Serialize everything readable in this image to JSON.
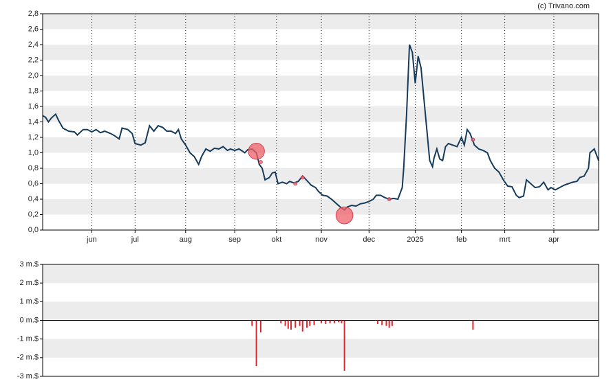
{
  "chart_data": [
    {
      "type": "line",
      "annotation": "(c) Trivano.com",
      "xlim": [
        0,
        385
      ],
      "ylim": [
        0,
        2.8
      ],
      "grid": true,
      "xticks": [
        {
          "value": 34,
          "label": "jun"
        },
        {
          "value": 64,
          "label": "jul"
        },
        {
          "value": 99,
          "label": "aug"
        },
        {
          "value": 133,
          "label": "sep"
        },
        {
          "value": 162,
          "label": "okt"
        },
        {
          "value": 193,
          "label": "nov"
        },
        {
          "value": 226,
          "label": "dec"
        },
        {
          "value": 258,
          "label": "2025"
        },
        {
          "value": 290,
          "label": "feb"
        },
        {
          "value": 320,
          "label": "mrt"
        },
        {
          "value": 354,
          "label": "apr"
        }
      ],
      "yticks": [
        {
          "value": 0,
          "label": "0,0"
        },
        {
          "value": 0.2,
          "label": "0,2"
        },
        {
          "value": 0.4,
          "label": "0,4"
        },
        {
          "value": 0.6,
          "label": "0,6"
        },
        {
          "value": 0.8,
          "label": "0,8"
        },
        {
          "value": 1.0,
          "label": "1,0"
        },
        {
          "value": 1.2,
          "label": "1,2"
        },
        {
          "value": 1.4,
          "label": "1,4"
        },
        {
          "value": 1.6,
          "label": "1,6"
        },
        {
          "value": 1.8,
          "label": "1,8"
        },
        {
          "value": 2.0,
          "label": "2,0"
        },
        {
          "value": 2.2,
          "label": "2,2"
        },
        {
          "value": 2.4,
          "label": "2,4"
        },
        {
          "value": 2.6,
          "label": "2,6"
        },
        {
          "value": 2.8,
          "label": "2,8"
        }
      ],
      "series": [
        {
          "color": "#163a5a",
          "x": [
            0,
            2,
            4,
            6,
            9,
            11,
            14,
            18,
            22,
            24,
            28,
            31,
            34,
            37,
            40,
            43,
            47,
            50,
            53,
            55,
            59,
            62,
            64,
            68,
            71,
            74,
            77,
            80,
            83,
            86,
            89,
            92,
            94,
            96,
            99,
            102,
            105,
            108,
            110,
            113,
            116,
            119,
            122,
            125,
            128,
            130,
            133,
            136,
            140,
            142,
            145,
            148,
            150,
            152,
            154,
            157,
            159,
            161,
            163,
            166,
            169,
            171,
            174,
            177,
            180,
            183,
            186,
            189,
            191,
            194,
            197,
            200,
            203,
            206,
            209,
            211,
            214,
            217,
            220,
            223,
            226,
            229,
            231,
            234,
            237,
            240,
            243,
            246,
            249,
            250,
            252,
            254,
            256,
            258,
            260,
            262,
            264,
            266,
            268,
            270,
            271,
            273,
            275,
            277,
            279,
            281,
            284,
            287,
            290,
            292,
            294,
            296,
            299,
            302,
            305,
            308,
            310,
            313,
            316,
            319,
            322,
            325,
            328,
            330,
            333,
            335,
            338,
            341,
            344,
            347,
            350,
            352,
            355,
            358,
            361,
            364,
            367,
            370,
            372,
            375,
            378,
            379,
            382,
            385
          ],
          "values": [
            1.48,
            1.46,
            1.4,
            1.45,
            1.5,
            1.42,
            1.32,
            1.28,
            1.27,
            1.23,
            1.3,
            1.3,
            1.27,
            1.3,
            1.26,
            1.28,
            1.25,
            1.22,
            1.18,
            1.32,
            1.3,
            1.25,
            1.12,
            1.1,
            1.13,
            1.35,
            1.28,
            1.35,
            1.33,
            1.28,
            1.28,
            1.25,
            1.3,
            1.18,
            1.1,
            1.0,
            0.95,
            0.85,
            0.95,
            1.05,
            1.02,
            1.06,
            1.05,
            1.08,
            1.03,
            1.05,
            1.03,
            1.05,
            1.0,
            1.04,
            1.05,
            1.0,
            0.85,
            0.8,
            0.65,
            0.68,
            0.74,
            0.75,
            0.6,
            0.62,
            0.6,
            0.63,
            0.61,
            0.63,
            0.7,
            0.64,
            0.58,
            0.55,
            0.5,
            0.45,
            0.44,
            0.4,
            0.35,
            0.3,
            0.26,
            0.3,
            0.32,
            0.31,
            0.34,
            0.35,
            0.37,
            0.4,
            0.45,
            0.45,
            0.42,
            0.4,
            0.41,
            0.4,
            0.55,
            0.8,
            1.5,
            2.4,
            2.3,
            1.9,
            2.25,
            2.1,
            1.7,
            1.3,
            0.9,
            0.82,
            0.93,
            1.05,
            0.92,
            0.9,
            1.08,
            1.12,
            1.1,
            1.08,
            1.2,
            1.1,
            1.3,
            1.25,
            1.1,
            1.05,
            1.03,
            1.0,
            0.9,
            0.8,
            0.75,
            0.65,
            0.57,
            0.56,
            0.45,
            0.42,
            0.44,
            0.65,
            0.6,
            0.55,
            0.56,
            0.62,
            0.52,
            0.55,
            0.52,
            0.55,
            0.58,
            0.6,
            0.62,
            0.63,
            0.68,
            0.7,
            0.8,
            1.0,
            1.05,
            0.9
          ]
        }
      ],
      "markers": {
        "color": "#f0606a",
        "x": [
          148,
          151,
          175,
          180,
          209,
          240,
          298
        ],
        "values": [
          1.02,
          0.88,
          0.6,
          0.68,
          0.19,
          0.4,
          1.17
        ],
        "sizes": [
          2.45,
          0.1,
          0.1,
          0.1,
          2.7,
          0.1,
          0.1
        ]
      }
    },
    {
      "type": "bar",
      "color": "#e0242e",
      "xlim": [
        0,
        385
      ],
      "ylim": [
        -3,
        3
      ],
      "grid": true,
      "yticks": [
        {
          "value": -3,
          "label": "-3 m.$"
        },
        {
          "value": -2,
          "label": "-2 m.$"
        },
        {
          "value": -1,
          "label": "-1 m.$"
        },
        {
          "value": 0,
          "label": "0 m.$"
        },
        {
          "value": 1,
          "label": "1 m.$"
        },
        {
          "value": 2,
          "label": "2 m.$"
        },
        {
          "value": 3,
          "label": "3 m.$"
        }
      ],
      "x": [
        145,
        148,
        151,
        165,
        168,
        170,
        172,
        175,
        178,
        180,
        183,
        185,
        188,
        193,
        196,
        199,
        202,
        205,
        207,
        209,
        232,
        235,
        238,
        240,
        242,
        298
      ],
      "values": [
        -0.3,
        -2.45,
        -0.65,
        -0.15,
        -0.3,
        -0.45,
        -0.5,
        -0.4,
        -0.3,
        -0.6,
        -0.4,
        -0.3,
        -0.25,
        -0.15,
        -0.2,
        -0.15,
        -0.15,
        -0.1,
        -0.15,
        -2.7,
        -0.2,
        -0.25,
        -0.3,
        -0.4,
        -0.3,
        -0.5
      ]
    }
  ]
}
